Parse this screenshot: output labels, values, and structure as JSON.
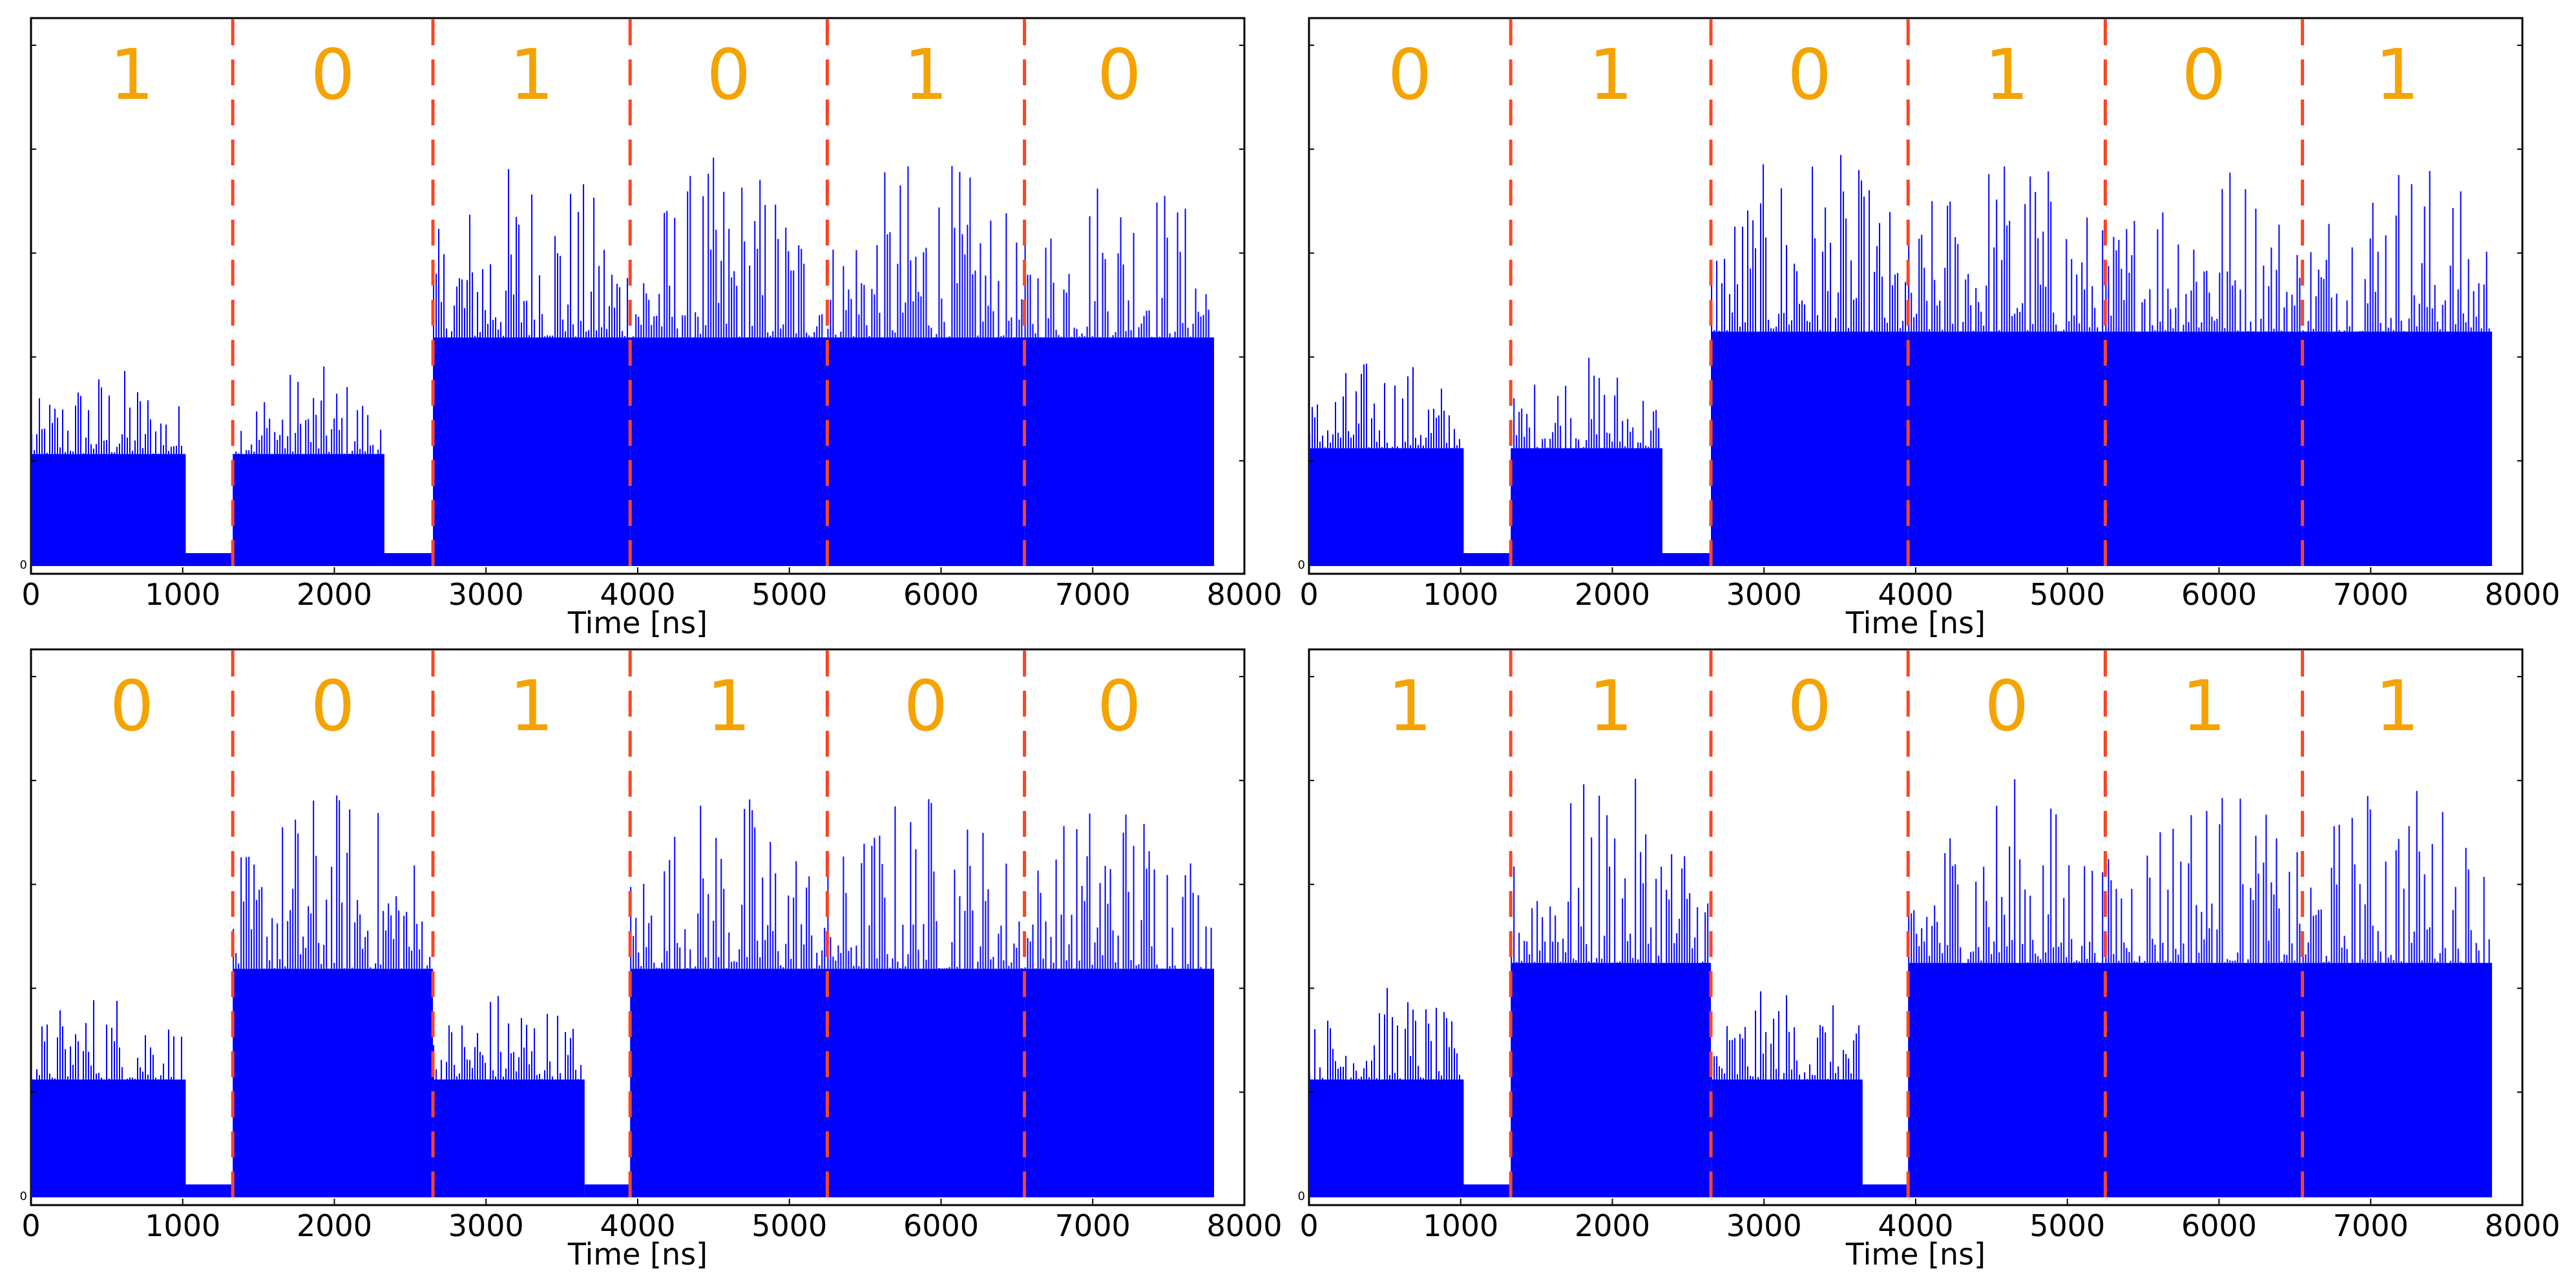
{
  "chart_data": [
    {
      "type": "bar",
      "panel": "top-left",
      "xlabel": "Time [ns]",
      "ylabel": "",
      "xlim": [
        0,
        8000
      ],
      "xticks": [
        "0",
        "1000",
        "2000",
        "3000",
        "4000",
        "5000",
        "6000",
        "7000",
        "8000"
      ],
      "yticks": [
        "0"
      ],
      "boundaries_ns": [
        1330,
        2650,
        3950,
        5250,
        6550
      ],
      "bits": [
        "1",
        "0",
        "1",
        "0",
        "1",
        "0"
      ],
      "segments": [
        {
          "start": 0,
          "end": 1330,
          "active_end": 1020,
          "level": 0.38
        },
        {
          "start": 1330,
          "end": 2650,
          "active_end": 2330,
          "level": 0.38
        },
        {
          "start": 2650,
          "end": 3950,
          "active_end": 3950,
          "level": 0.78
        },
        {
          "start": 3950,
          "end": 5250,
          "active_end": 5250,
          "level": 0.78
        },
        {
          "start": 5250,
          "end": 6550,
          "active_end": 6550,
          "level": 0.78
        },
        {
          "start": 6550,
          "end": 7800,
          "active_end": 7800,
          "level": 0.78
        }
      ],
      "grid": false,
      "colors": {
        "bars": "#0000ff",
        "boundary": "#ff4422",
        "bit_text": "#f5a300"
      }
    },
    {
      "type": "bar",
      "panel": "top-right",
      "xlabel": "Time [ns]",
      "ylabel": "",
      "xlim": [
        0,
        8000
      ],
      "xticks": [
        "0",
        "1000",
        "2000",
        "3000",
        "4000",
        "5000",
        "6000",
        "7000",
        "8000"
      ],
      "yticks": [
        "0"
      ],
      "boundaries_ns": [
        1330,
        2650,
        3950,
        5250,
        6550
      ],
      "bits": [
        "0",
        "1",
        "0",
        "1",
        "0",
        "1"
      ],
      "segments": [
        {
          "start": 0,
          "end": 1330,
          "active_end": 1020,
          "level": 0.4
        },
        {
          "start": 1330,
          "end": 2650,
          "active_end": 2330,
          "level": 0.4
        },
        {
          "start": 2650,
          "end": 3950,
          "active_end": 3950,
          "level": 0.8
        },
        {
          "start": 3950,
          "end": 5250,
          "active_end": 5250,
          "level": 0.8
        },
        {
          "start": 5250,
          "end": 6550,
          "active_end": 6550,
          "level": 0.8
        },
        {
          "start": 6550,
          "end": 7800,
          "active_end": 7800,
          "level": 0.8
        }
      ],
      "grid": false,
      "colors": {
        "bars": "#0000ff",
        "boundary": "#ff4422",
        "bit_text": "#f5a300"
      }
    },
    {
      "type": "bar",
      "panel": "bottom-left",
      "xlabel": "Time [ns]",
      "ylabel": "",
      "xlim": [
        0,
        8000
      ],
      "xticks": [
        "0",
        "1000",
        "2000",
        "3000",
        "4000",
        "5000",
        "6000",
        "7000",
        "8000"
      ],
      "yticks": [
        "0"
      ],
      "boundaries_ns": [
        1330,
        2650,
        3950,
        5250,
        6550
      ],
      "bits": [
        "0",
        "0",
        "1",
        "1",
        "0",
        "0"
      ],
      "segments": [
        {
          "start": 0,
          "end": 1330,
          "active_end": 1020,
          "level": 0.4
        },
        {
          "start": 1330,
          "end": 2650,
          "active_end": 2650,
          "level": 0.78
        },
        {
          "start": 2650,
          "end": 3950,
          "active_end": 3650,
          "level": 0.4
        },
        {
          "start": 3950,
          "end": 5250,
          "active_end": 5250,
          "level": 0.78
        },
        {
          "start": 5250,
          "end": 6550,
          "active_end": 6550,
          "level": 0.78
        },
        {
          "start": 6550,
          "end": 7800,
          "active_end": 7800,
          "level": 0.78
        }
      ],
      "grid": false,
      "colors": {
        "bars": "#0000ff",
        "boundary": "#ff4422",
        "bit_text": "#f5a300"
      }
    },
    {
      "type": "bar",
      "panel": "bottom-right",
      "xlabel": "Time [ns]",
      "ylabel": "",
      "xlim": [
        0,
        8000
      ],
      "xticks": [
        "0",
        "1000",
        "2000",
        "3000",
        "4000",
        "5000",
        "6000",
        "7000",
        "8000"
      ],
      "yticks": [
        "0"
      ],
      "boundaries_ns": [
        1330,
        2650,
        3950,
        5250,
        6550
      ],
      "bits": [
        "1",
        "1",
        "0",
        "0",
        "1",
        "1"
      ],
      "segments": [
        {
          "start": 0,
          "end": 1330,
          "active_end": 1020,
          "level": 0.4
        },
        {
          "start": 1330,
          "end": 2650,
          "active_end": 2650,
          "level": 0.8
        },
        {
          "start": 2650,
          "end": 3950,
          "active_end": 3650,
          "level": 0.4
        },
        {
          "start": 3950,
          "end": 5250,
          "active_end": 5250,
          "level": 0.8
        },
        {
          "start": 5250,
          "end": 6550,
          "active_end": 6550,
          "level": 0.8
        },
        {
          "start": 6550,
          "end": 7800,
          "active_end": 7800,
          "level": 0.8
        }
      ],
      "grid": false,
      "colors": {
        "bars": "#0000ff",
        "boundary": "#ff4422",
        "bit_text": "#f5a300"
      }
    }
  ]
}
